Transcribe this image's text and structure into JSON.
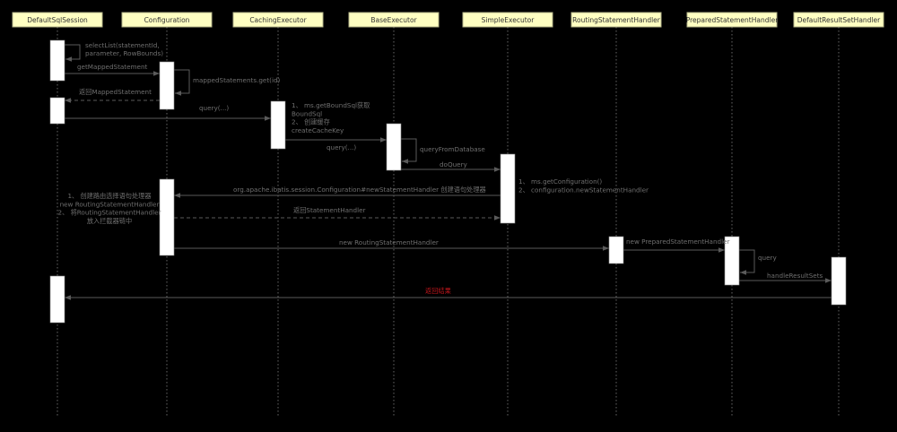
{
  "diagram": {
    "type": "sequence",
    "participants": [
      "DefaultSqlSession",
      "Configuration",
      "CachingExecutor",
      "BaseExecutor",
      "SimpleExecutor",
      "RoutingStatementHandler",
      "PreparedStatementHandler",
      "DefaultResultSetHandler"
    ],
    "messages": [
      {
        "from": "DefaultSqlSession",
        "to": "DefaultSqlSession",
        "lines": [
          "selectList(statementId,",
          "parameter, RowBounds)"
        ],
        "style": "solid"
      },
      {
        "from": "DefaultSqlSession",
        "to": "Configuration",
        "lines": [
          "getMappedStatement"
        ],
        "style": "solid"
      },
      {
        "from": "Configuration",
        "to": "Configuration",
        "lines": [
          "mappedStatements.get(id)"
        ],
        "style": "solid"
      },
      {
        "from": "Configuration",
        "to": "DefaultSqlSession",
        "lines": [
          "返回MappedStatement"
        ],
        "style": "dashed"
      },
      {
        "from": "DefaultSqlSession",
        "to": "CachingExecutor",
        "lines": [
          "query(...)"
        ],
        "style": "solid"
      },
      {
        "from": "CachingExecutor",
        "to": "BaseExecutor",
        "lines": [
          "query(...)"
        ],
        "style": "solid"
      },
      {
        "from": "BaseExecutor",
        "to": "BaseExecutor",
        "lines": [
          "queryFromDatabase"
        ],
        "style": "solid"
      },
      {
        "from": "BaseExecutor",
        "to": "SimpleExecutor",
        "lines": [
          "doQuery"
        ],
        "style": "solid"
      },
      {
        "from": "SimpleExecutor",
        "to": "Configuration",
        "lines": [
          "org.apache.ibatis.session.Configuration#newStatementHandler 创建语句处理器"
        ],
        "style": "solid"
      },
      {
        "from": "Configuration",
        "to": "SimpleExecutor",
        "lines": [
          "返回StatementHandler"
        ],
        "style": "dashed"
      },
      {
        "from": "Configuration",
        "to": "RoutingStatementHandler",
        "lines": [
          "new RoutingStatementHandler"
        ],
        "style": "solid"
      },
      {
        "from": "RoutingStatementHandler",
        "to": "PreparedStatementHandler",
        "lines": [
          "new PreparedStatementHandler"
        ],
        "style": "solid"
      },
      {
        "from": "PreparedStatementHandler",
        "to": "PreparedStatementHandler",
        "lines": [
          "query"
        ],
        "style": "solid"
      },
      {
        "from": "PreparedStatementHandler",
        "to": "DefaultResultSetHandler",
        "lines": [
          "handleResultSets"
        ],
        "style": "solid"
      },
      {
        "from": "DefaultResultSetHandler",
        "to": "DefaultSqlSession",
        "lines": [
          "返回结果"
        ],
        "style": "solid",
        "color": "#c0161c"
      }
    ],
    "notes": [
      {
        "on": "CachingExecutor",
        "lines": [
          "1、 ms.getBoundSql获取",
          "BoundSql",
          "2、 创建缓存",
          "createCacheKey"
        ]
      },
      {
        "on": "SimpleExecutor",
        "lines": [
          "1、 ms.getConfiguration()",
          "2、 configuration.newStatementHandler"
        ]
      },
      {
        "on": "Configuration",
        "lines": [
          "1、 创建路由选择语句处理器",
          "new RoutingStatementHandler",
          "2、 将RoutingStatementHandler",
          "放入拦截器链中"
        ]
      }
    ],
    "colors": {
      "background": "#000000",
      "header": "#ffffc2",
      "activation": "#ffffff",
      "line": "#5a5a5a",
      "highlight": "#c0161c"
    }
  }
}
